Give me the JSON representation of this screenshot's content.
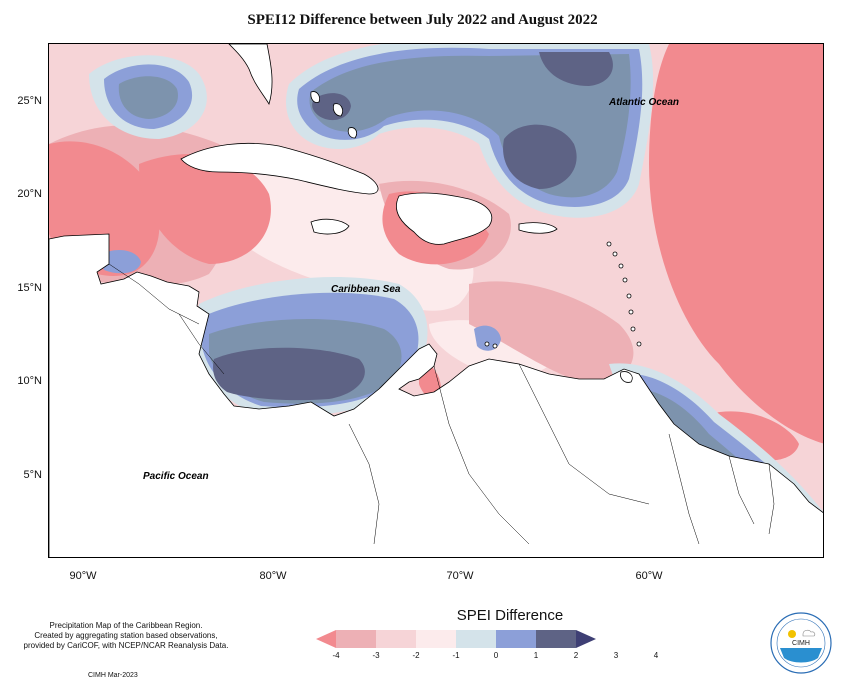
{
  "title": "SPEI12 Difference between July 2022 and August 2022",
  "map": {
    "ocean_labels": {
      "atlantic": "Atlantic Ocean",
      "caribbean": "Caribbean Sea",
      "pacific": "Pacific Ocean"
    },
    "lat_ticks": [
      "25°N",
      "20°N",
      "15°N",
      "10°N",
      "5°N"
    ],
    "lon_ticks": [
      "90°W",
      "80°W",
      "70°W",
      "60°W"
    ]
  },
  "legend": {
    "title": "SPEI Difference",
    "ticks": [
      "-4",
      "-3",
      "-2",
      "-1",
      "0",
      "1",
      "2",
      "3",
      "4"
    ],
    "colors": [
      "#f28a8f",
      "#edb0b5",
      "#f6d4d7",
      "#fcebec",
      "#d4e3ea",
      "#8c9fd8",
      "#7d93ad",
      "#5e6385"
    ]
  },
  "note": {
    "line1": "Precipitation Map of the Caribbean Region.",
    "line2": "Created by aggregating station based observations,",
    "line3": "provided by CariCOF, with NCEP/NCAR Reanalysis Data."
  },
  "credit": "CIMH Mar-2023",
  "logo": {
    "text": "CIMH"
  }
}
